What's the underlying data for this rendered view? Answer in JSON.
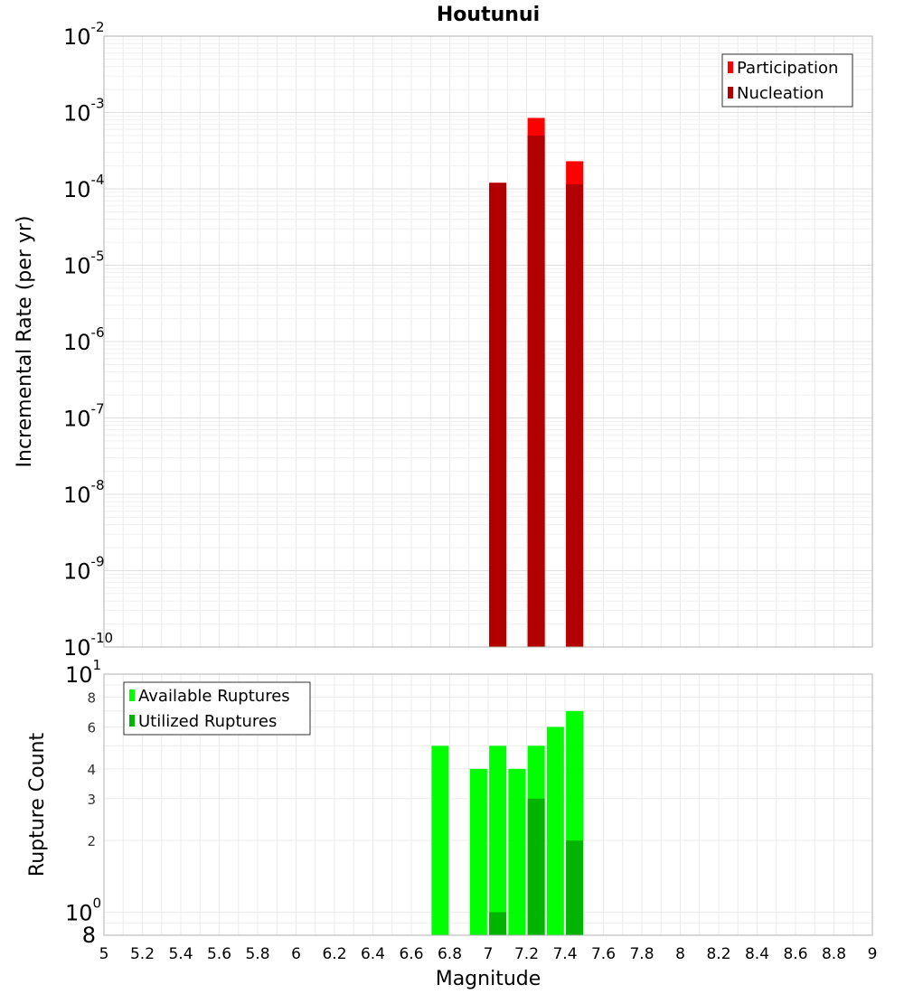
{
  "chart_data": [
    {
      "type": "bar",
      "title": "Houtunui",
      "ylabel": "Incremental Rate (per yr)",
      "xlabel": "",
      "yscale": "log",
      "ylim": [
        1e-10,
        0.01
      ],
      "xlim": [
        5,
        9
      ],
      "bar_width": 0.1,
      "grid": true,
      "legend_position": "top-right",
      "y_major_ticks": [
        {
          "value": 0.01,
          "base": "10",
          "exp": "-2"
        },
        {
          "value": 0.001,
          "base": "10",
          "exp": "-3"
        },
        {
          "value": 0.0001,
          "base": "10",
          "exp": "-4"
        },
        {
          "value": 1e-05,
          "base": "10",
          "exp": "-5"
        },
        {
          "value": 1e-06,
          "base": "10",
          "exp": "-6"
        },
        {
          "value": 1e-07,
          "base": "10",
          "exp": "-7"
        },
        {
          "value": 1e-08,
          "base": "10",
          "exp": "-8"
        },
        {
          "value": 1e-09,
          "base": "10",
          "exp": "-9"
        },
        {
          "value": 1e-10,
          "base": "10",
          "exp": "-10"
        }
      ],
      "series": [
        {
          "name": "Participation",
          "color": "#ff0000",
          "x": [
            7.05,
            7.25,
            7.45
          ],
          "values": [
            0.00012,
            0.00085,
            0.00023
          ]
        },
        {
          "name": "Nucleation",
          "color": "#b20000",
          "x": [
            7.05,
            7.25,
            7.45
          ],
          "values": [
            0.00012,
            0.0005,
            0.000115
          ]
        }
      ]
    },
    {
      "type": "bar",
      "title": "",
      "ylabel": "Rupture Count",
      "xlabel": "Magnitude",
      "yscale": "log",
      "ylim": [
        0.8,
        10
      ],
      "xlim": [
        5,
        9
      ],
      "bar_width": 0.1,
      "grid": true,
      "legend_position": "top-left",
      "x_ticks": [
        "5",
        "5.2",
        "5.4",
        "5.6",
        "5.8",
        "6",
        "6.2",
        "6.4",
        "6.6",
        "6.8",
        "7",
        "7.2",
        "7.4",
        "7.6",
        "7.8",
        "8",
        "8.2",
        "8.4",
        "8.6",
        "8.8",
        "9"
      ],
      "y_major_ticks": [
        {
          "value": 10,
          "base": "10",
          "exp": "1"
        },
        {
          "value": 1,
          "base": "10",
          "exp": "0"
        }
      ],
      "y_minor_ticks": [
        {
          "value": 8,
          "label": "8"
        },
        {
          "value": 6,
          "label": "6"
        },
        {
          "value": 4,
          "label": "4"
        },
        {
          "value": 3,
          "label": "3"
        },
        {
          "value": 2,
          "label": "2"
        }
      ],
      "y_bottom_label": "8",
      "series": [
        {
          "name": "Available Ruptures",
          "color": "#00ff00",
          "x": [
            6.75,
            6.95,
            7.05,
            7.15,
            7.25,
            7.35,
            7.45
          ],
          "values": [
            5,
            4,
            5,
            4,
            5,
            6,
            7
          ]
        },
        {
          "name": "Utilized Ruptures",
          "color": "#00b400",
          "x": [
            7.05,
            7.25,
            7.45
          ],
          "values": [
            1,
            3,
            2
          ]
        }
      ]
    }
  ]
}
